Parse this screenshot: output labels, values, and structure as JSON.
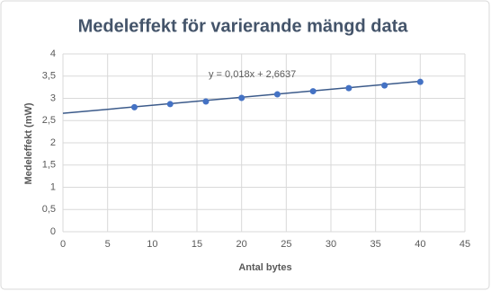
{
  "chart_data": {
    "type": "scatter",
    "title": "Medeleffekt för varierande mängd data",
    "x_label": "Antal bytes",
    "y_label": "Medeleffekt (mW)",
    "series": [
      {
        "name": "Medeleffekt",
        "color": "#4472c4",
        "x": [
          8,
          12,
          16,
          20,
          24,
          28,
          32,
          36,
          40
        ],
        "values": [
          2.8,
          2.87,
          2.93,
          3.01,
          3.09,
          3.16,
          3.23,
          3.29,
          3.37
        ]
      }
    ],
    "trendline": {
      "label": "y = 0,018x + 2,6637",
      "slope": 0.018,
      "intercept": 2.6637,
      "color": "#3b5a8a"
    },
    "xlim": [
      0,
      45
    ],
    "xticks": [
      0,
      5,
      10,
      15,
      20,
      25,
      30,
      35,
      40,
      45
    ],
    "ylim": [
      0,
      4
    ],
    "yticks": [
      0,
      {
        "value": 0.5,
        "label": "0,5"
      },
      1,
      {
        "value": 1.5,
        "label": "1,5"
      },
      2,
      {
        "value": 2.5,
        "label": "2,5"
      },
      3,
      {
        "value": 3.5,
        "label": "3,5"
      },
      4
    ],
    "grid": true
  }
}
